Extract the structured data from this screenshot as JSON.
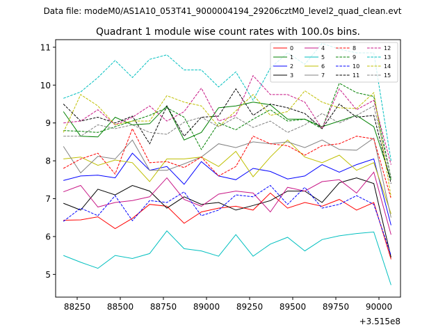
{
  "suptitle": "Data file: modeM0/AS1A10_053T41_9000004194_29206cztM0_level2_quad_clean.evt",
  "chart_data": {
    "type": "line",
    "title": "Quadrant 1 module wise count rates with 100.0s bins.",
    "xlabel": "",
    "ylabel": "",
    "x_offset_label": "+3.515e8",
    "xlim": [
      88125,
      90125
    ],
    "ylim": [
      4.4,
      11.2
    ],
    "xticks": [
      88250,
      88500,
      88750,
      89000,
      89250,
      89500,
      89750,
      90000
    ],
    "xtick_labels": [
      "88250",
      "88500",
      "88750",
      "89000",
      "89250",
      "89500",
      "89750",
      "90000"
    ],
    "yticks": [
      5,
      6,
      7,
      8,
      9,
      10,
      11
    ],
    "ytick_labels": [
      "5",
      "6",
      "7",
      "8",
      "9",
      "10",
      "11"
    ],
    "grid": false,
    "legend_position": "top-right",
    "x": [
      88170,
      88270,
      88370,
      88470,
      88570,
      88670,
      88770,
      88870,
      88970,
      89070,
      89170,
      89270,
      89370,
      89470,
      89570,
      89670,
      89770,
      89870,
      89970,
      90070
    ],
    "series": [
      {
        "name": "0",
        "color": "#ff0000",
        "dash": "solid",
        "values": [
          6.43,
          6.44,
          6.52,
          6.21,
          6.48,
          6.85,
          6.8,
          6.35,
          6.65,
          6.75,
          6.8,
          6.7,
          7.15,
          6.75,
          6.9,
          6.8,
          6.98,
          6.7,
          6.9,
          5.4
        ]
      },
      {
        "name": "1",
        "color": "#008000",
        "dash": "solid",
        "values": [
          9.3,
          8.65,
          8.63,
          9.15,
          8.95,
          8.98,
          9.45,
          8.55,
          8.75,
          9.4,
          9.45,
          9.55,
          9.48,
          9.1,
          9.1,
          8.9,
          9.05,
          9.2,
          8.9,
          7.5
        ]
      },
      {
        "name": "2",
        "color": "#0000ff",
        "dash": "solid",
        "values": [
          7.48,
          7.6,
          7.62,
          7.55,
          8.2,
          7.75,
          7.85,
          7.38,
          7.98,
          7.6,
          7.5,
          7.8,
          7.72,
          7.52,
          7.6,
          7.9,
          7.7,
          7.9,
          8.05,
          6.3
        ]
      },
      {
        "name": "3",
        "color": "#000000",
        "dash": "solid",
        "values": [
          6.88,
          6.7,
          7.25,
          7.1,
          7.35,
          7.2,
          6.75,
          7.05,
          6.85,
          6.9,
          6.7,
          6.82,
          6.95,
          7.2,
          7.2,
          6.9,
          7.42,
          7.55,
          7.4,
          5.45
        ]
      },
      {
        "name": "4",
        "color": "#c71585",
        "dash": "solid",
        "values": [
          7.18,
          7.35,
          6.78,
          6.9,
          6.95,
          7.05,
          7.55,
          6.98,
          6.8,
          7.12,
          7.2,
          7.15,
          6.65,
          7.3,
          7.2,
          7.45,
          7.5,
          7.15,
          7.7,
          6.05
        ]
      },
      {
        "name": "5",
        "color": "#00bfbf",
        "dash": "solid",
        "values": [
          5.5,
          5.32,
          5.16,
          5.5,
          5.42,
          5.55,
          6.15,
          5.68,
          5.62,
          5.48,
          6.05,
          5.48,
          5.8,
          5.98,
          5.62,
          5.92,
          6.02,
          6.08,
          6.12,
          4.72
        ]
      },
      {
        "name": "6",
        "color": "#bfbf00",
        "dash": "solid",
        "values": [
          8.05,
          8.1,
          7.88,
          8.02,
          7.95,
          7.45,
          8.05,
          8.05,
          8.1,
          7.85,
          8.25,
          7.58,
          8.1,
          8.55,
          8.1,
          7.95,
          8.15,
          7.75,
          7.95,
          6.6
        ]
      },
      {
        "name": "7",
        "color": "#808080",
        "dash": "solid",
        "values": [
          8.38,
          7.68,
          8.12,
          8.05,
          8.55,
          7.75,
          7.75,
          7.92,
          8.1,
          8.45,
          8.35,
          8.5,
          8.45,
          8.5,
          8.35,
          8.55,
          8.3,
          8.28,
          8.6,
          6.5
        ]
      },
      {
        "name": "8",
        "color": "#ff0000",
        "dash": "dashed",
        "values": [
          7.8,
          8.05,
          8.2,
          7.65,
          8.85,
          7.95,
          7.98,
          7.82,
          8.1,
          7.6,
          7.85,
          8.65,
          8.45,
          8.4,
          8.15,
          8.4,
          8.45,
          8.65,
          8.58,
          7.0
        ]
      },
      {
        "name": "9",
        "color": "#008000",
        "dash": "dashed",
        "values": [
          8.8,
          8.78,
          8.75,
          8.9,
          9.05,
          9.2,
          9.4,
          9.15,
          8.3,
          9.0,
          8.82,
          9.1,
          9.35,
          9.05,
          9.1,
          8.85,
          10.05,
          9.8,
          9.7,
          7.55
        ]
      },
      {
        "name": "10",
        "color": "#0000ff",
        "dash": "dashed",
        "values": [
          6.4,
          6.75,
          6.55,
          7.08,
          6.42,
          6.95,
          6.9,
          7.18,
          6.55,
          6.7,
          7.1,
          7.05,
          7.35,
          6.85,
          7.3,
          6.75,
          6.85,
          7.08,
          6.85,
          5.5
        ]
      },
      {
        "name": "11",
        "color": "#000000",
        "dash": "dashed",
        "values": [
          9.5,
          9.05,
          9.15,
          9.0,
          9.18,
          8.45,
          9.45,
          8.65,
          9.15,
          9.18,
          9.9,
          9.2,
          9.5,
          9.4,
          9.25,
          8.85,
          9.5,
          9.15,
          9.2,
          7.4
        ]
      },
      {
        "name": "12",
        "color": "#c71585",
        "dash": "dashed",
        "values": [
          9.0,
          9.05,
          9.35,
          8.95,
          9.15,
          9.45,
          9.05,
          9.3,
          9.92,
          9.05,
          9.2,
          10.25,
          9.75,
          9.75,
          9.55,
          8.85,
          9.9,
          9.35,
          9.6,
          7.9
        ]
      },
      {
        "name": "13",
        "color": "#00bfbf",
        "dash": "dashed",
        "values": [
          9.65,
          9.82,
          10.2,
          10.65,
          10.2,
          10.68,
          10.8,
          10.4,
          10.4,
          9.95,
          10.35,
          9.6,
          10.45,
          10.85,
          10.55,
          11.1,
          10.95,
          10.85,
          10.85,
          8.0
        ]
      },
      {
        "name": "14",
        "color": "#bfbf00",
        "dash": "dashed",
        "values": [
          8.75,
          9.75,
          9.45,
          8.95,
          9.05,
          9.05,
          9.72,
          9.55,
          9.45,
          8.9,
          9.32,
          9.75,
          9.2,
          9.3,
          9.85,
          9.55,
          9.4,
          9.38,
          9.8,
          7.05
        ]
      },
      {
        "name": "15",
        "color": "#808080",
        "dash": "dashed",
        "values": [
          8.65,
          8.65,
          8.95,
          8.85,
          8.95,
          8.75,
          8.7,
          9.02,
          9.15,
          8.9,
          9.15,
          8.88,
          9.05,
          8.75,
          8.95,
          9.25,
          9.0,
          9.2,
          9.45,
          7.55
        ]
      }
    ]
  }
}
